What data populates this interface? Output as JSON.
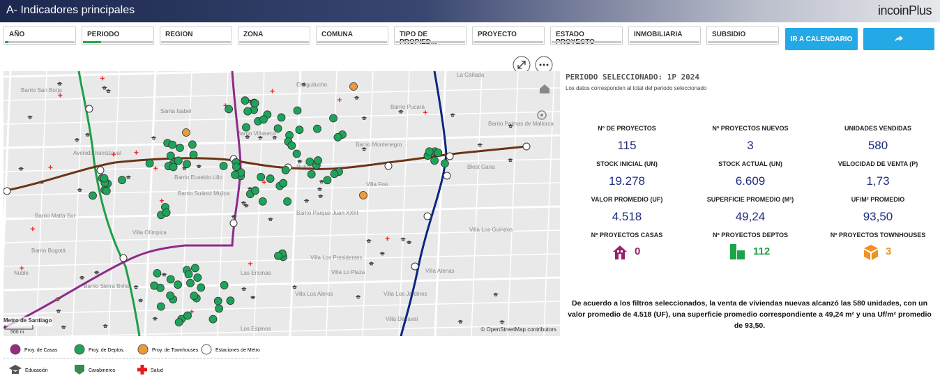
{
  "header": {
    "title": "A- Indicadores principales",
    "logo": "incoinPlus"
  },
  "filters": [
    "AÑO",
    "PERIODO",
    "REGION",
    "ZONA",
    "COMUNA",
    "TIPO DE PROPIED...",
    "PROYECTO",
    "ESTADO PROYECTO",
    "INMOBILIARIA",
    "SUBSIDIO"
  ],
  "buttons": {
    "calendar": "IR A CALENDARIO"
  },
  "period": {
    "title": "PERIODO SELECCIONADO: 1P 2024",
    "note": "Los datos corresponden al total del periodo seleccionado"
  },
  "kpis": [
    {
      "label": "Nº DE PROYECTOS",
      "value": "115"
    },
    {
      "label": "Nº PROYECTOS NUEVOS",
      "value": "3"
    },
    {
      "label": "UNIDADES VENDIDAS",
      "value": "580"
    },
    {
      "label": "STOCK INICIAL (UN)",
      "value": "19.278"
    },
    {
      "label": "STOCK ACTUAL (UN)",
      "value": "6.609"
    },
    {
      "label": "VELOCIDAD DE VENTA (P)",
      "value": "1,73"
    },
    {
      "label": "VALOR PROMEDIO (UF)",
      "value": "4.518"
    },
    {
      "label": "SUPERFICIE PROMEDIO (M²)",
      "value": "49,24"
    },
    {
      "label": "UF/M² PROMEDIO",
      "value": "93,50"
    }
  ],
  "counts": [
    {
      "label": "Nº PROYECTOS CASAS",
      "value": "0"
    },
    {
      "label": "Nº PROYECTOS DEPTOS",
      "value": "112"
    },
    {
      "label": "Nº PROYECTOS TOWNHOUSES",
      "value": "3"
    }
  ],
  "summary": "De acuerdo a los filtros seleccionados, la venta de viviendas nuevas alcanzó las 580 unidades, con un valor promedio de 4.518 (UF), una superficie promedio correspondiente a 49,24 m² y una Uf/m² promedio de 93,50.",
  "legend": [
    "Proy. de Casas",
    "Proy. de Deptos.",
    "Proy. de Townhouses",
    "Estaciones de Metro",
    "Educación",
    "Carabineros",
    "Salud"
  ],
  "map": {
    "labels": [
      "Barrio San Borja",
      "El Aguilucho",
      "La Cañada",
      "Santa Isabel",
      "Barrio Pucará",
      "Barrio Villaseca",
      "Barrio Palmas de Mallorca",
      "Barrio Montenegro",
      "Avenida Irarrázaval",
      "Barrio Eusebio Lillo",
      "Ñuñoa",
      "Blest Gana",
      "Barrio Suárez Mujica",
      "Villa Frei",
      "Barrio Matta Sur",
      "Barrio Parque Juan XXIII",
      "Villa Olímpica",
      "Villa Los Guindos",
      "Barrio Bogotá",
      "Villa Los Presidentes",
      "Villa Lo Plaza",
      "Nuble",
      "Las Encinas",
      "Villa Atenas",
      "Barrio Sierra Bella",
      "Villa Los Jardines",
      "Villa Los Aleros",
      "Los Espinos",
      "Villa Dezaval",
      "Metro de Santiago"
    ],
    "scale": "500 m",
    "attribution": "© OpenStreetMap contributors"
  }
}
